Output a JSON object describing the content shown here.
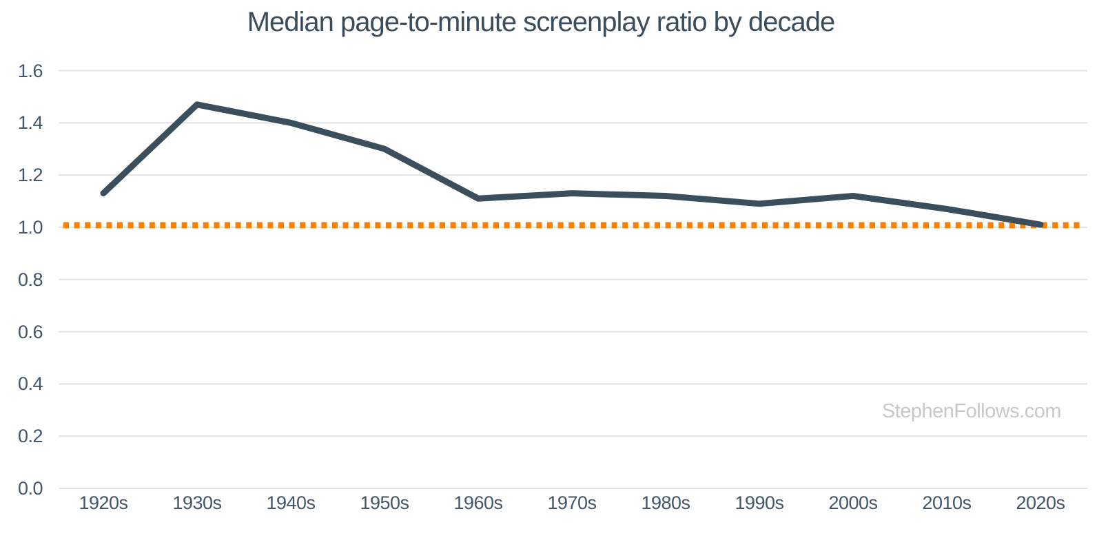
{
  "title": "Median page-to-minute screenplay ratio by decade",
  "watermark": "StephenFollows.com",
  "chart_data": {
    "type": "line",
    "title": "Median page-to-minute screenplay ratio by decade",
    "categories": [
      "1920s",
      "1930s",
      "1940s",
      "1950s",
      "1960s",
      "1970s",
      "1980s",
      "1990s",
      "2000s",
      "2010s",
      "2020s"
    ],
    "series": [
      {
        "name": "Median page-to-minute ratio",
        "color": "#3b4e5c",
        "values": [
          1.13,
          1.47,
          1.4,
          1.3,
          1.11,
          1.13,
          1.12,
          1.09,
          1.12,
          1.07,
          1.01
        ]
      }
    ],
    "reference_line": {
      "value": 1.0,
      "color": "#f98100",
      "style": "dotted"
    },
    "xlabel": "",
    "ylabel": "",
    "ylim": [
      0,
      1.6
    ],
    "y_ticks": [
      "0.0",
      "0.2",
      "0.4",
      "0.6",
      "0.8",
      "1.0",
      "1.2",
      "1.4",
      "1.6"
    ],
    "grid": "horizontal",
    "grid_color": "#e2e2e2",
    "legend": "none",
    "background": "#ffffff"
  }
}
